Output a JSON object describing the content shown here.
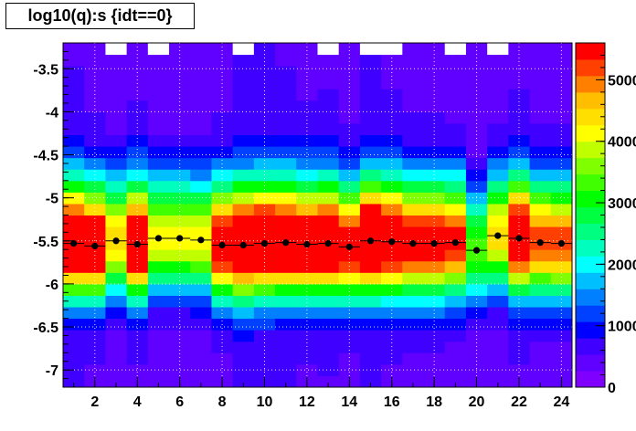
{
  "title": "log10(q):s {idt==0}",
  "chart_data": {
    "type": "heatmap",
    "title": "log10(q):s {idt==0}",
    "xlabel": "",
    "ylabel": "",
    "xlim": [
      0.5,
      24.5
    ],
    "ylim": [
      -7.2,
      -3.2
    ],
    "x_bins": 24,
    "y_bins": 30,
    "x_ticks": [
      "2",
      "4",
      "6",
      "8",
      "10",
      "12",
      "14",
      "16",
      "18",
      "20",
      "22",
      "24"
    ],
    "y_ticks": [
      "-3.5",
      "-4",
      "-4.5",
      "-5",
      "-5.5",
      "-6",
      "-6.5",
      "-7"
    ],
    "z_ticks": [
      "0",
      "1000",
      "2000",
      "3000",
      "4000",
      "5000"
    ],
    "z_max": 5600,
    "grid": true,
    "palette": [
      "#7f00ff",
      "#6000ff",
      "#3f00ff",
      "#0000ff",
      "#0040ff",
      "#0080ff",
      "#00bfff",
      "#00ffff",
      "#00ffbf",
      "#00ff80",
      "#00ff40",
      "#00ff00",
      "#40ff00",
      "#80ff00",
      "#bfff00",
      "#ffff00",
      "#ffdf00",
      "#ffbf00",
      "#ff8000",
      "#ff4000",
      "#ff0000"
    ],
    "profile_points": [
      {
        "x": 1,
        "y": -5.53
      },
      {
        "x": 2,
        "y": -5.56
      },
      {
        "x": 3,
        "y": -5.5
      },
      {
        "x": 4,
        "y": -5.54
      },
      {
        "x": 5,
        "y": -5.47
      },
      {
        "x": 6,
        "y": -5.47
      },
      {
        "x": 7,
        "y": -5.49
      },
      {
        "x": 8,
        "y": -5.55
      },
      {
        "x": 9,
        "y": -5.55
      },
      {
        "x": 10,
        "y": -5.53
      },
      {
        "x": 11,
        "y": -5.52
      },
      {
        "x": 12,
        "y": -5.54
      },
      {
        "x": 13,
        "y": -5.53
      },
      {
        "x": 14,
        "y": -5.57
      },
      {
        "x": 15,
        "y": -5.5
      },
      {
        "x": 16,
        "y": -5.51
      },
      {
        "x": 17,
        "y": -5.53
      },
      {
        "x": 18,
        "y": -5.53
      },
      {
        "x": 19,
        "y": -5.52
      },
      {
        "x": 20,
        "y": -5.61
      },
      {
        "x": 21,
        "y": -5.44
      },
      {
        "x": 22,
        "y": -5.47
      },
      {
        "x": 23,
        "y": -5.52
      },
      {
        "x": 24,
        "y": -5.53
      }
    ],
    "peak_factor": [
      0.92,
      0.86,
      0.55,
      0.88,
      0.5,
      0.5,
      0.5,
      0.82,
      0.95,
      0.95,
      0.92,
      0.88,
      0.9,
      0.8,
      0.96,
      0.9,
      0.82,
      0.82,
      0.75,
      0.35,
      0.55,
      0.9,
      0.7,
      0.7
    ],
    "empty_top_bins": [
      3,
      5,
      9,
      13,
      15,
      16,
      19,
      21
    ]
  }
}
